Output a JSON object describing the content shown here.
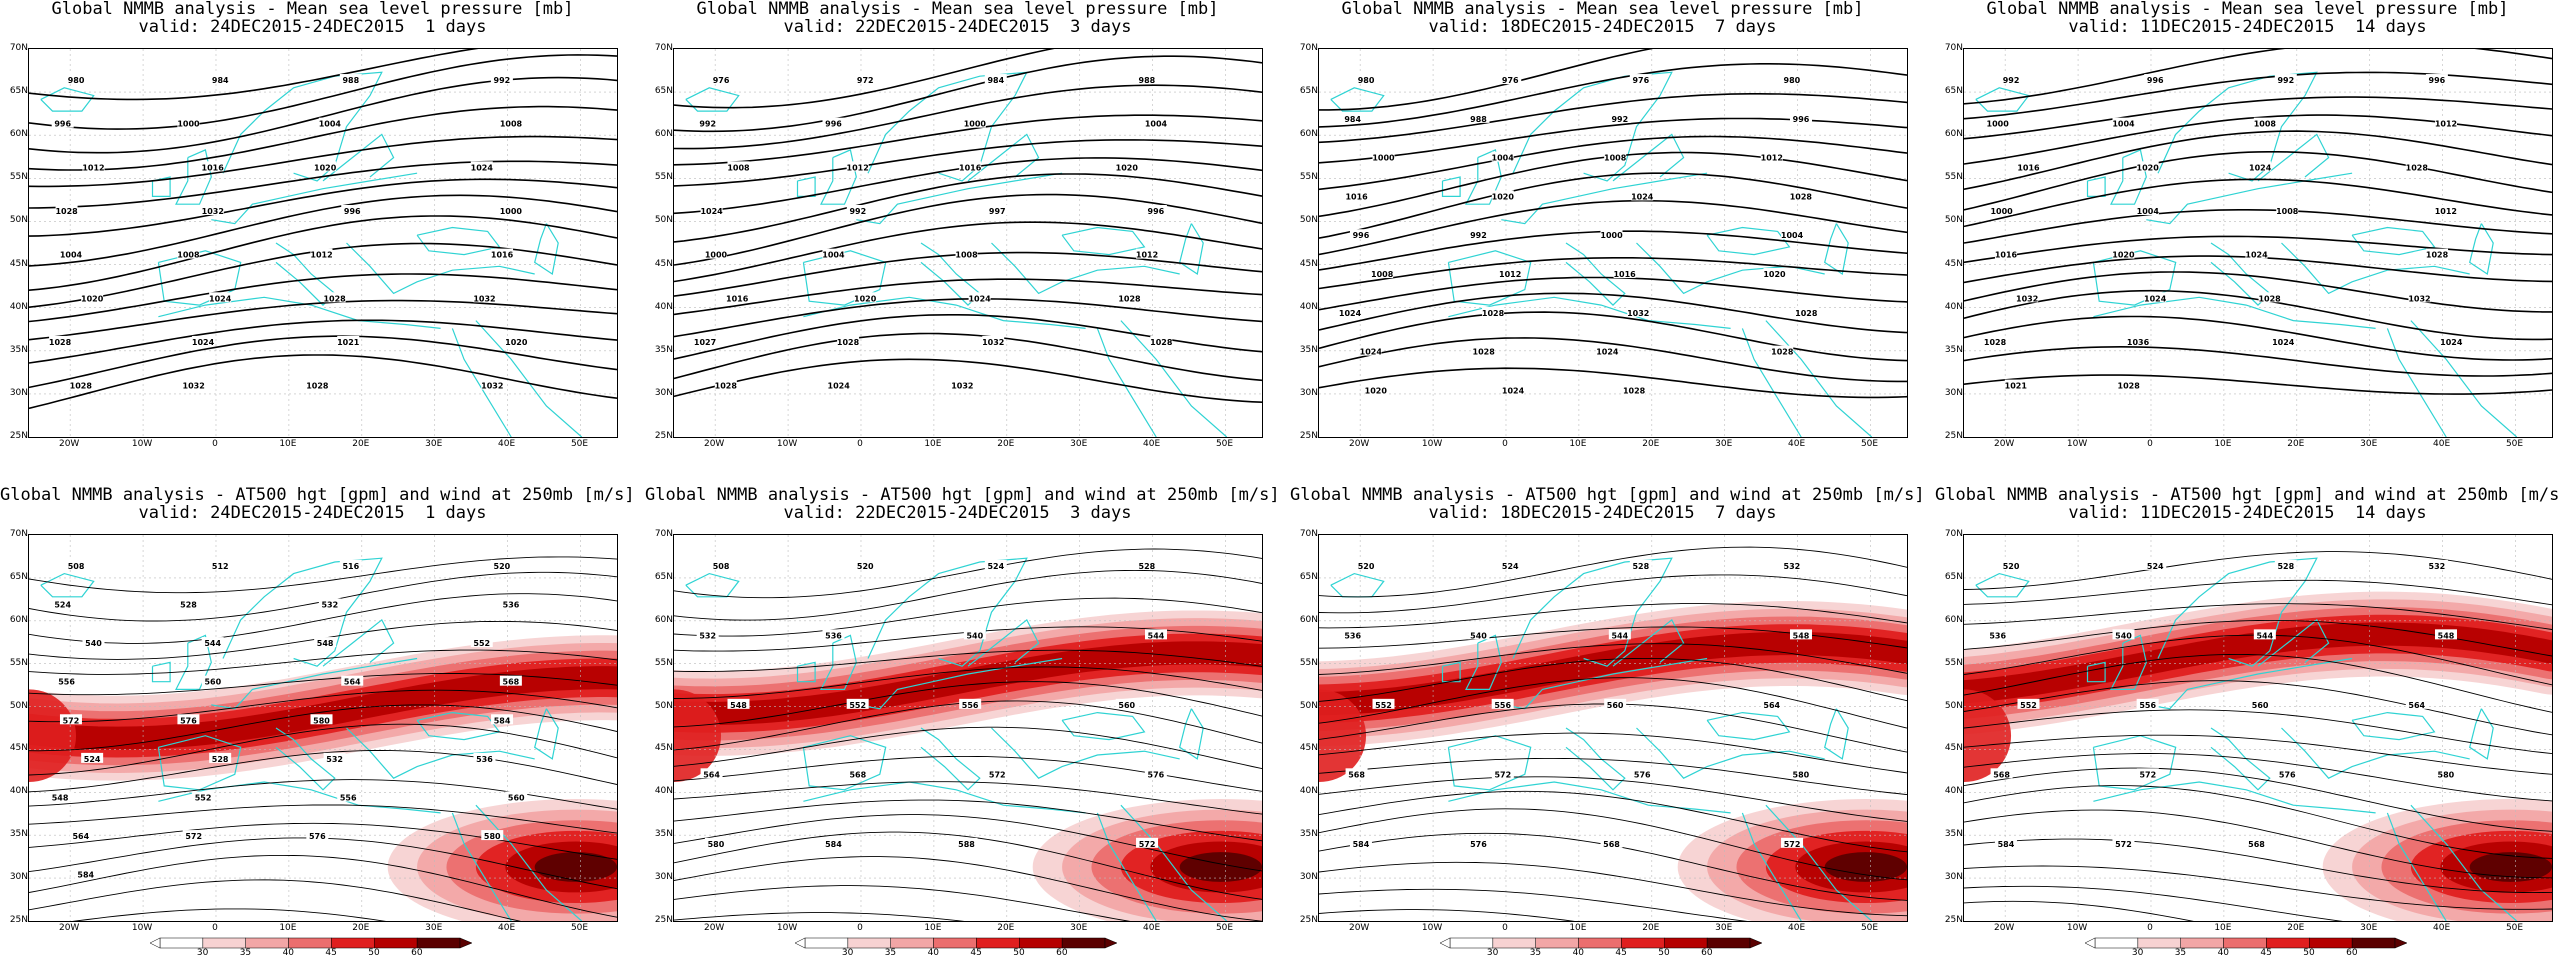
{
  "colors": {
    "coast": "#2fd3d3",
    "isobar": "#000000",
    "wind": [
      "#f7d2d2",
      "#f2a6a6",
      "#eb6e6e",
      "#e01f1f",
      "#b50000",
      "#5a0000"
    ]
  },
  "map": {
    "lat_labels": [
      "70N",
      "65N",
      "60N",
      "55N",
      "50N",
      "45N",
      "40N",
      "35N",
      "30N",
      "25N"
    ],
    "lon_labels": [
      "20W",
      "10W",
      "0",
      "10E",
      "20E",
      "30E",
      "40E",
      "50E"
    ]
  },
  "colorbar": {
    "ticks": [
      "30",
      "35",
      "40",
      "45",
      "50",
      "60"
    ]
  },
  "mslp_panels": [
    {
      "title": "Global NMMB analysis - Mean sea level pressure [mb]",
      "subtitle": "valid: 24DEC2015-24DEC2015  1 days",
      "labels": [
        "980",
        "984",
        "988",
        "992",
        "996",
        "1000",
        "1004",
        "1008",
        "1012",
        "1016",
        "1020",
        "1024",
        "1028",
        "1032",
        "996",
        "1000",
        "1004",
        "1008",
        "1012",
        "1016",
        "1020",
        "1024",
        "1028",
        "1032",
        "1028",
        "1024",
        "1021",
        "1020",
        "1028",
        "1032",
        "1028",
        "1032"
      ]
    },
    {
      "title": "Global NMMB analysis - Mean sea level pressure [mb]",
      "subtitle": "valid: 22DEC2015-24DEC2015  3 days",
      "labels": [
        "976",
        "972",
        "984",
        "988",
        "992",
        "996",
        "1000",
        "1004",
        "1008",
        "1012",
        "1016",
        "1020",
        "1024",
        "992",
        "997",
        "996",
        "1000",
        "1004",
        "1008",
        "1012",
        "1016",
        "1020",
        "1024",
        "1028",
        "1027",
        "1028",
        "1032",
        "1028",
        "1028",
        "1024",
        "1032"
      ]
    },
    {
      "title": "Global NMMB analysis - Mean sea level pressure [mb]",
      "subtitle": "valid: 18DEC2015-24DEC2015  7 days",
      "labels": [
        "980",
        "976",
        "976",
        "980",
        "984",
        "988",
        "992",
        "996",
        "1000",
        "1004",
        "1008",
        "1012",
        "1016",
        "1020",
        "1024",
        "1028",
        "996",
        "992",
        "1000",
        "1004",
        "1008",
        "1012",
        "1016",
        "1020",
        "1024",
        "1028",
        "1032",
        "1028",
        "1024",
        "1028",
        "1024",
        "1028",
        "1020",
        "1024",
        "1028"
      ]
    },
    {
      "title": "Global NMMB analysis - Mean sea level pressure [mb]",
      "subtitle": "valid: 11DEC2015-24DEC2015  14 days",
      "labels": [
        "992",
        "996",
        "992",
        "996",
        "1000",
        "1004",
        "1008",
        "1012",
        "1016",
        "1020",
        "1024",
        "1028",
        "1000",
        "1004",
        "1008",
        "1012",
        "1016",
        "1020",
        "1024",
        "1028",
        "1032",
        "1024",
        "1028",
        "1032",
        "1028",
        "1036",
        "1024",
        "1024",
        "1021",
        "1028"
      ]
    }
  ],
  "z500_panels": [
    {
      "title": "Global NMMB analysis - AT500 hgt [gpm] and wind at 250mb [m/s]",
      "subtitle": "valid: 24DEC2015-24DEC2015  1 days",
      "labels": [
        "508",
        "512",
        "516",
        "520",
        "524",
        "528",
        "532",
        "536",
        "540",
        "544",
        "548",
        "552",
        "556",
        "560",
        "564",
        "568",
        "572",
        "576",
        "580",
        "584",
        "524",
        "528",
        "532",
        "536",
        "548",
        "552",
        "556",
        "560",
        "564",
        "572",
        "576",
        "580",
        "584"
      ]
    },
    {
      "title": "Global NMMB analysis - AT500 hgt [gpm] and wind at 250mb [m/s]",
      "subtitle": "valid: 22DEC2015-24DEC2015  3 days",
      "labels": [
        "508",
        "520",
        "524",
        "528",
        "532",
        "536",
        "540",
        "544",
        "548",
        "552",
        "556",
        "560",
        "564",
        "568",
        "572",
        "576",
        "580",
        "584",
        "588",
        "572"
      ]
    },
    {
      "title": "Global NMMB analysis - AT500 hgt [gpm] and wind at 250mb [m/s]",
      "subtitle": "valid: 18DEC2015-24DEC2015  7 days",
      "labels": [
        "520",
        "524",
        "528",
        "532",
        "536",
        "540",
        "544",
        "548",
        "552",
        "556",
        "560",
        "564",
        "568",
        "572",
        "576",
        "580",
        "584",
        "576",
        "568",
        "572"
      ]
    },
    {
      "title": "Global NMMB analysis - AT500 hgt [gpm] and wind at 250mb [m/s]",
      "subtitle": "valid: 11DEC2015-24DEC2015  14 days",
      "labels": [
        "520",
        "524",
        "528",
        "532",
        "536",
        "540",
        "544",
        "548",
        "552",
        "556",
        "560",
        "564",
        "568",
        "572",
        "576",
        "580",
        "584",
        "572",
        "568"
      ]
    }
  ]
}
